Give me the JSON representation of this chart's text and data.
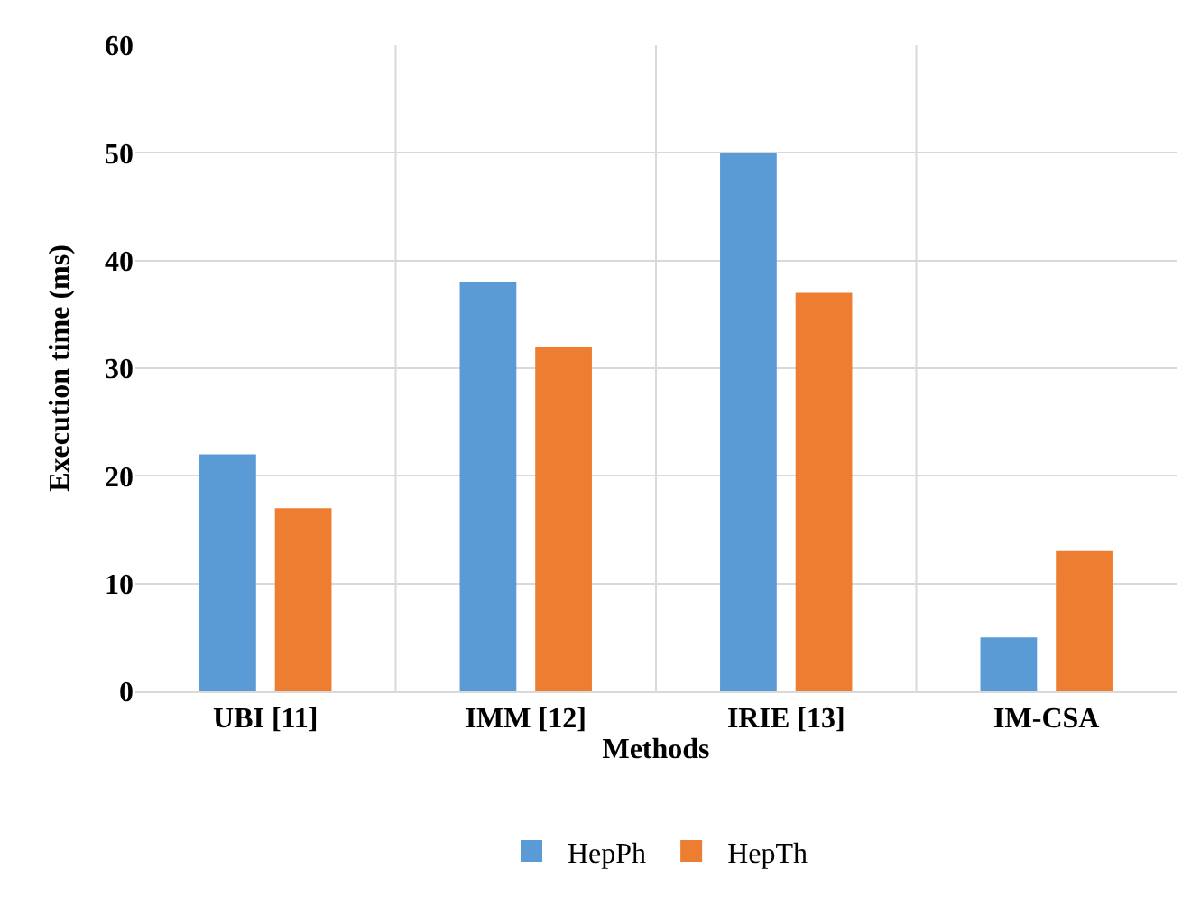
{
  "chart_data": {
    "type": "bar",
    "xlabel": "Methods",
    "ylabel": "Execution time (ms)",
    "categories": [
      "UBI [11]",
      "IMM [12]",
      "IRIE [13]",
      "IM-CSA"
    ],
    "series": [
      {
        "name": "HepPh",
        "color": "#5b9bd5",
        "values": [
          22,
          38,
          50,
          5
        ]
      },
      {
        "name": "HepTh",
        "color": "#ed7d31",
        "values": [
          17,
          32,
          37,
          13
        ]
      }
    ],
    "ylim": [
      0,
      60
    ],
    "yticks": [
      0,
      10,
      20,
      30,
      40,
      50,
      60
    ],
    "grid": true,
    "legend": "bottom"
  }
}
